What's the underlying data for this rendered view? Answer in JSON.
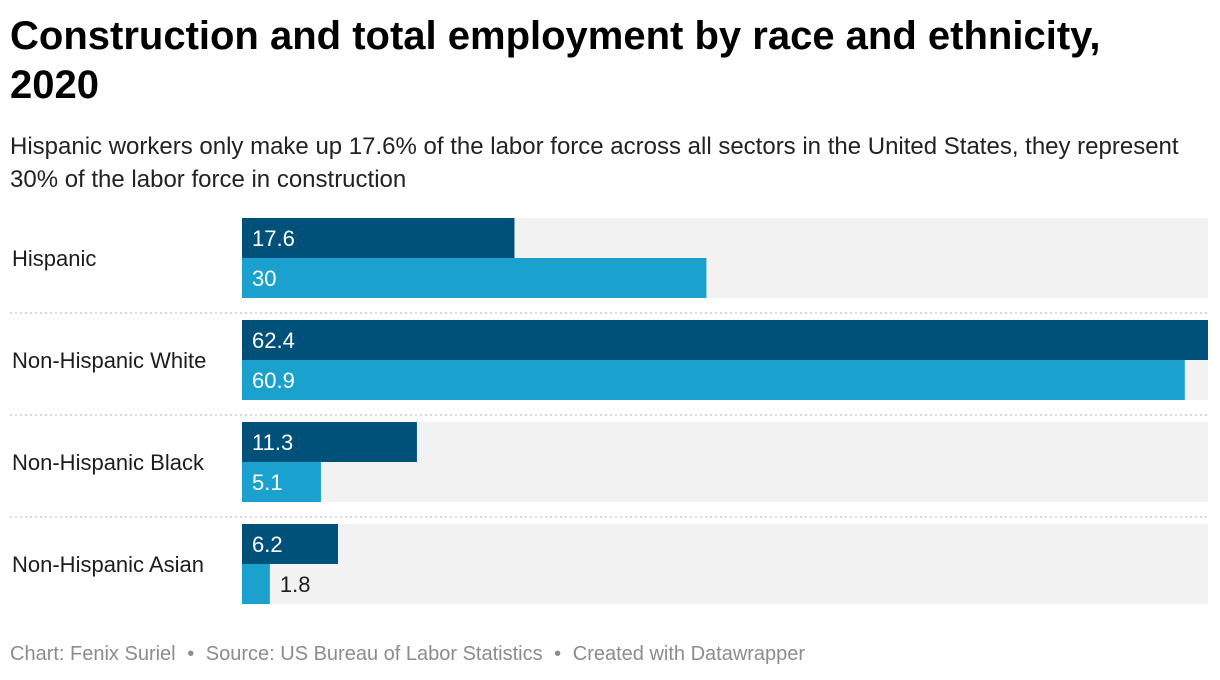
{
  "title": "Construction and total employment by race and ethnicity, 2020",
  "subtitle": "Hispanic workers only make up 17.6% of the labor force across all sectors in the United States, they represent 30% of the labor force in construction",
  "footer": {
    "chart_credit": "Chart: Fenix Suriel",
    "source": "Source: US Bureau of Labor Statistics",
    "created_with": "Created with Datawrapper",
    "separator": "•"
  },
  "colors": {
    "series_1": "#00517a",
    "series_2": "#1aa1ce",
    "track": "#f2f2f2",
    "divider": "#cfcfcf"
  },
  "chart_data": {
    "type": "bar",
    "orientation": "horizontal",
    "categories": [
      "Hispanic",
      "Non-Hispanic White",
      "Non-Hispanic Black",
      "Non-Hispanic Asian"
    ],
    "series": [
      {
        "values": [
          17.6,
          62.4,
          11.3,
          6.2
        ]
      },
      {
        "values": [
          30,
          60.9,
          5.1,
          1.8
        ]
      }
    ],
    "xlim": [
      0,
      62.4
    ],
    "data_labels": true,
    "legend": "none",
    "grid": false
  }
}
